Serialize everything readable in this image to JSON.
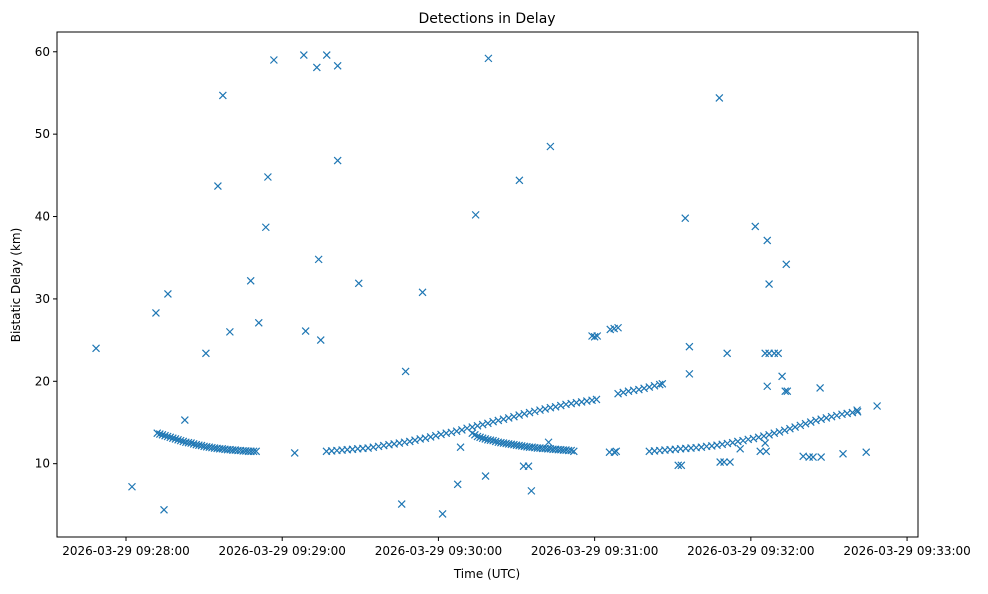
{
  "chart_data": {
    "type": "scatter",
    "title": "Detections in Delay",
    "xlabel": "Time (UTC)",
    "ylabel": "Bistatic Delay (km)",
    "x_units": "seconds after 2026-03-29 09:28:00 UTC",
    "xlim": [
      -26.5,
      304.2
    ],
    "ylim": [
      1.1,
      62.4
    ],
    "grid": false,
    "marker": "x",
    "color": "#1f77b4",
    "xticks": [
      {
        "value": 0,
        "label": "2026-03-29 09:28:00"
      },
      {
        "value": 60,
        "label": "2026-03-29 09:29:00"
      },
      {
        "value": 120,
        "label": "2026-03-29 09:30:00"
      },
      {
        "value": 180,
        "label": "2026-03-29 09:31:00"
      },
      {
        "value": 240,
        "label": "2026-03-29 09:32:00"
      },
      {
        "value": 300,
        "label": "2026-03-29 09:33:00"
      }
    ],
    "yticks": [
      {
        "value": 10,
        "label": "10"
      },
      {
        "value": 20,
        "label": "20"
      },
      {
        "value": 30,
        "label": "30"
      },
      {
        "value": 40,
        "label": "40"
      },
      {
        "value": 50,
        "label": "50"
      },
      {
        "value": 60,
        "label": "60"
      }
    ],
    "points": [
      [
        12,
        13.7
      ],
      [
        14,
        13.5
      ],
      [
        16,
        13.3
      ],
      [
        18,
        13.1
      ],
      [
        20,
        12.9
      ],
      [
        22,
        12.7
      ],
      [
        24,
        12.55
      ],
      [
        26,
        12.4
      ],
      [
        28,
        12.25
      ],
      [
        30,
        12.1
      ],
      [
        32,
        12.0
      ],
      [
        34,
        11.9
      ],
      [
        36,
        11.8
      ],
      [
        38,
        11.75
      ],
      [
        40,
        11.7
      ],
      [
        42,
        11.65
      ],
      [
        44,
        11.6
      ],
      [
        46,
        11.55
      ],
      [
        48,
        11.5
      ],
      [
        50,
        11.5
      ],
      [
        13,
        13.6
      ],
      [
        15,
        13.4
      ],
      [
        17,
        13.2
      ],
      [
        19,
        13.0
      ],
      [
        21,
        12.8
      ],
      [
        23,
        12.6
      ],
      [
        25,
        12.5
      ],
      [
        27,
        12.3
      ],
      [
        29,
        12.2
      ],
      [
        31,
        12.05
      ],
      [
        33,
        11.95
      ],
      [
        35,
        11.85
      ],
      [
        37,
        11.8
      ],
      [
        39,
        11.7
      ],
      [
        41,
        11.65
      ],
      [
        43,
        11.6
      ],
      [
        45,
        11.55
      ],
      [
        47,
        11.5
      ],
      [
        49,
        11.5
      ],
      [
        64.8,
        11.3
      ],
      [
        77,
        11.5
      ],
      [
        79,
        11.55
      ],
      [
        81,
        11.6
      ],
      [
        83,
        11.65
      ],
      [
        85,
        11.7
      ],
      [
        87,
        11.75
      ],
      [
        89,
        11.8
      ],
      [
        91,
        11.85
      ],
      [
        93,
        11.9
      ],
      [
        95,
        12.0
      ],
      [
        97,
        12.1
      ],
      [
        99,
        12.2
      ],
      [
        101,
        12.3
      ],
      [
        103,
        12.4
      ],
      [
        105,
        12.5
      ],
      [
        107,
        12.6
      ],
      [
        109,
        12.7
      ],
      [
        111,
        12.85
      ],
      [
        113,
        13.0
      ],
      [
        115,
        13.1
      ],
      [
        117,
        13.25
      ],
      [
        119,
        13.4
      ],
      [
        121,
        13.55
      ],
      [
        123,
        13.7
      ],
      [
        125,
        13.8
      ],
      [
        127,
        13.95
      ],
      [
        129,
        14.1
      ],
      [
        131,
        14.3
      ],
      [
        133,
        14.45
      ],
      [
        135,
        14.6
      ],
      [
        137,
        14.75
      ],
      [
        139,
        14.9
      ],
      [
        141,
        15.1
      ],
      [
        143,
        15.25
      ],
      [
        145,
        15.4
      ],
      [
        147,
        15.55
      ],
      [
        149,
        15.7
      ],
      [
        151,
        15.9
      ],
      [
        153,
        16.05
      ],
      [
        155,
        16.2
      ],
      [
        157,
        16.35
      ],
      [
        159,
        16.5
      ],
      [
        161,
        16.65
      ],
      [
        163,
        16.8
      ],
      [
        165,
        16.9
      ],
      [
        167,
        17.05
      ],
      [
        169,
        17.2
      ],
      [
        171,
        17.3
      ],
      [
        173,
        17.4
      ],
      [
        175,
        17.5
      ],
      [
        177,
        17.6
      ],
      [
        179,
        17.7
      ],
      [
        180.7,
        17.8
      ],
      [
        189,
        18.5
      ],
      [
        191,
        18.65
      ],
      [
        193,
        18.8
      ],
      [
        195,
        18.9
      ],
      [
        197,
        19.0
      ],
      [
        199,
        19.15
      ],
      [
        201,
        19.3
      ],
      [
        203,
        19.45
      ],
      [
        205,
        19.6
      ],
      [
        206,
        19.7
      ],
      [
        179,
        25.5
      ],
      [
        180,
        25.4
      ],
      [
        181,
        25.5
      ],
      [
        186,
        26.3
      ],
      [
        187.5,
        26.4
      ],
      [
        189,
        26.5
      ],
      [
        133,
        13.7
      ],
      [
        135,
        13.3
      ],
      [
        137,
        13.1
      ],
      [
        139,
        12.9
      ],
      [
        141,
        12.8
      ],
      [
        143,
        12.6
      ],
      [
        145,
        12.5
      ],
      [
        147,
        12.4
      ],
      [
        149,
        12.3
      ],
      [
        151,
        12.2
      ],
      [
        153,
        12.1
      ],
      [
        155,
        12.0
      ],
      [
        157,
        11.95
      ],
      [
        159,
        11.9
      ],
      [
        161,
        11.85
      ],
      [
        163,
        11.8
      ],
      [
        165,
        11.75
      ],
      [
        167,
        11.7
      ],
      [
        169,
        11.65
      ],
      [
        171,
        11.6
      ],
      [
        172,
        11.5
      ],
      [
        134,
        13.5
      ],
      [
        136,
        13.2
      ],
      [
        138,
        13.0
      ],
      [
        140,
        12.85
      ],
      [
        142,
        12.7
      ],
      [
        144,
        12.55
      ],
      [
        146,
        12.45
      ],
      [
        148,
        12.35
      ],
      [
        150,
        12.25
      ],
      [
        152,
        12.15
      ],
      [
        154,
        12.05
      ],
      [
        156,
        12.0
      ],
      [
        158,
        11.9
      ],
      [
        160,
        11.85
      ],
      [
        162,
        11.8
      ],
      [
        164,
        11.75
      ],
      [
        166,
        11.7
      ],
      [
        168,
        11.65
      ],
      [
        170,
        11.6
      ],
      [
        185.7,
        11.4
      ],
      [
        187.6,
        11.4
      ],
      [
        188.3,
        11.5
      ],
      [
        201,
        11.5
      ],
      [
        203,
        11.55
      ],
      [
        205,
        11.6
      ],
      [
        207,
        11.65
      ],
      [
        209,
        11.7
      ],
      [
        211,
        11.75
      ],
      [
        213,
        11.8
      ],
      [
        215,
        11.85
      ],
      [
        217,
        11.9
      ],
      [
        219,
        11.95
      ],
      [
        221,
        12.0
      ],
      [
        223,
        12.1
      ],
      [
        225,
        12.15
      ],
      [
        227,
        12.25
      ],
      [
        229,
        12.35
      ],
      [
        231,
        12.45
      ],
      [
        233,
        12.55
      ],
      [
        235,
        12.7
      ],
      [
        237,
        12.8
      ],
      [
        239,
        12.95
      ],
      [
        241,
        13.05
      ],
      [
        243,
        13.2
      ],
      [
        245,
        13.35
      ],
      [
        247,
        13.5
      ],
      [
        249,
        13.7
      ],
      [
        251,
        13.85
      ],
      [
        253,
        14.05
      ],
      [
        255,
        14.25
      ],
      [
        257,
        14.45
      ],
      [
        259,
        14.65
      ],
      [
        261,
        14.85
      ],
      [
        263,
        15.05
      ],
      [
        265,
        15.25
      ],
      [
        267,
        15.4
      ],
      [
        269,
        15.55
      ],
      [
        271,
        15.7
      ],
      [
        273,
        15.85
      ],
      [
        275,
        16.0
      ],
      [
        277,
        16.1
      ],
      [
        279,
        16.2
      ],
      [
        281,
        16.3
      ],
      [
        -11.5,
        24.0
      ],
      [
        2.3,
        7.2
      ],
      [
        11.5,
        28.3
      ],
      [
        14.6,
        4.4
      ],
      [
        16.1,
        30.6
      ],
      [
        22.6,
        15.3
      ],
      [
        30.7,
        23.4
      ],
      [
        35.3,
        43.7
      ],
      [
        37.2,
        54.7
      ],
      [
        39.9,
        26.0
      ],
      [
        47.9,
        32.2
      ],
      [
        51.0,
        27.1
      ],
      [
        53.7,
        38.7
      ],
      [
        54.5,
        44.8
      ],
      [
        56.8,
        59.0
      ],
      [
        68.3,
        59.6
      ],
      [
        69.0,
        26.1
      ],
      [
        73.3,
        58.1
      ],
      [
        74.0,
        34.8
      ],
      [
        74.8,
        25.0
      ],
      [
        77.1,
        59.6
      ],
      [
        81.3,
        58.3
      ],
      [
        81.3,
        46.8
      ],
      [
        89.4,
        31.9
      ],
      [
        105.9,
        5.1
      ],
      [
        107.4,
        21.2
      ],
      [
        113.9,
        30.8
      ],
      [
        121.6,
        3.9
      ],
      [
        127.4,
        7.5
      ],
      [
        128.5,
        12.0
      ],
      [
        134.3,
        40.2
      ],
      [
        138.1,
        8.5
      ],
      [
        139.2,
        59.2
      ],
      [
        151.1,
        44.4
      ],
      [
        152.7,
        9.7
      ],
      [
        154.6,
        9.7
      ],
      [
        155.7,
        6.7
      ],
      [
        162.3,
        12.6
      ],
      [
        163.0,
        48.5
      ],
      [
        212.1,
        9.8
      ],
      [
        213.3,
        9.8
      ],
      [
        214.8,
        39.8
      ],
      [
        216.4,
        24.2
      ],
      [
        216.4,
        20.9
      ],
      [
        227.9,
        54.4
      ],
      [
        228.2,
        10.2
      ],
      [
        229.7,
        10.2
      ],
      [
        232.0,
        10.2
      ],
      [
        230.9,
        23.4
      ],
      [
        235.9,
        11.8
      ],
      [
        241.7,
        38.8
      ],
      [
        243.6,
        11.5
      ],
      [
        245.9,
        11.5
      ],
      [
        245.5,
        12.5
      ],
      [
        245.5,
        23.4
      ],
      [
        247.0,
        23.4
      ],
      [
        249.0,
        23.4
      ],
      [
        250.5,
        23.4
      ],
      [
        246.3,
        37.1
      ],
      [
        246.3,
        19.4
      ],
      [
        247.0,
        31.8
      ],
      [
        252.0,
        20.6
      ],
      [
        253.2,
        18.8
      ],
      [
        254.0,
        18.8
      ],
      [
        253.6,
        34.2
      ],
      [
        260.1,
        10.9
      ],
      [
        262.4,
        10.8
      ],
      [
        263.9,
        10.8
      ],
      [
        267.0,
        10.8
      ],
      [
        266.6,
        19.2
      ],
      [
        275.4,
        11.2
      ],
      [
        280.8,
        16.5
      ],
      [
        284.3,
        11.4
      ],
      [
        288.5,
        17.0
      ]
    ]
  }
}
